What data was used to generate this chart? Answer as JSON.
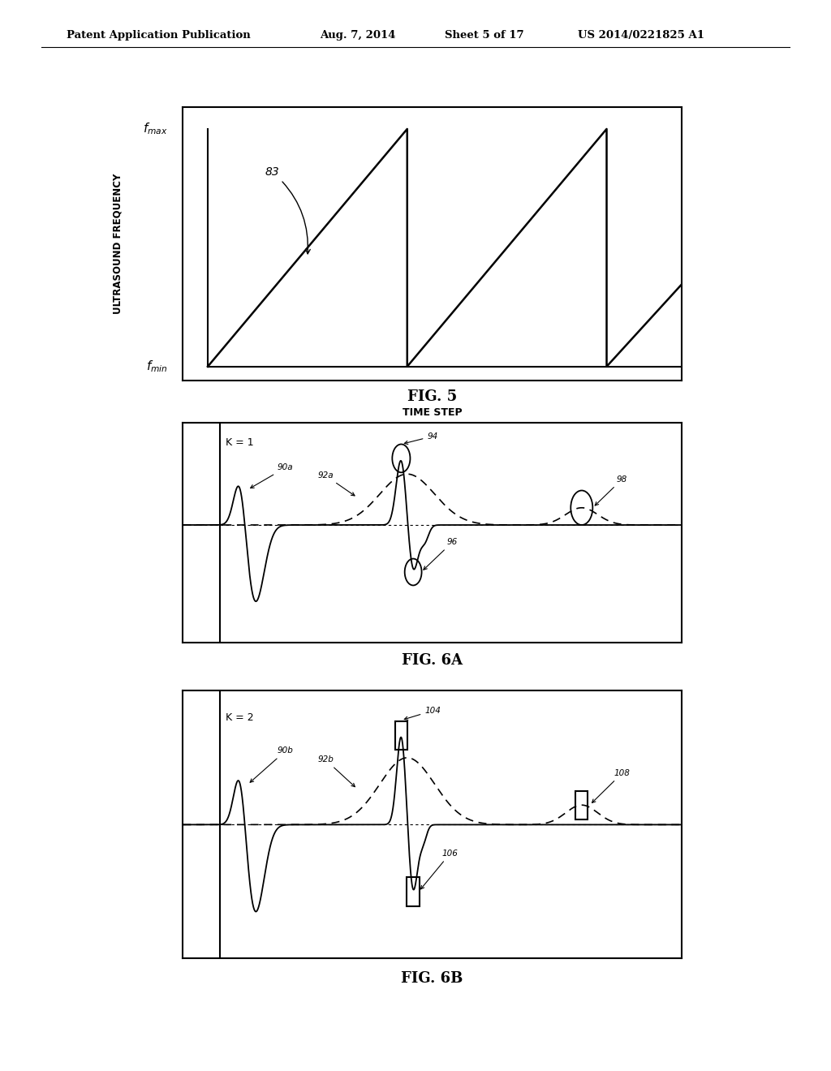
{
  "bg_color": "#ffffff",
  "header_text": "Patent Application Publication",
  "header_date": "Aug. 7, 2014",
  "header_sheet": "Sheet 5 of 17",
  "header_patent": "US 2014/0221825 A1",
  "fig5_ylabel": "ULTRASOUND FREQUENCY",
  "fig5_xlabel": "TIME STEP",
  "fig5_caption": "FIG. 5",
  "fig5_label": "83",
  "fig6a_label": "K = 1",
  "fig6a_caption": "FIG. 6A",
  "fig6b_label": "K = 2",
  "fig6b_caption": "FIG. 6B",
  "annot_90a": "90a",
  "annot_92a": "92a",
  "annot_94": "94",
  "annot_96": "96",
  "annot_98": "98",
  "annot_90b": "90b",
  "annot_92b": "92b",
  "annot_104": "104",
  "annot_106": "106",
  "annot_108": "108"
}
